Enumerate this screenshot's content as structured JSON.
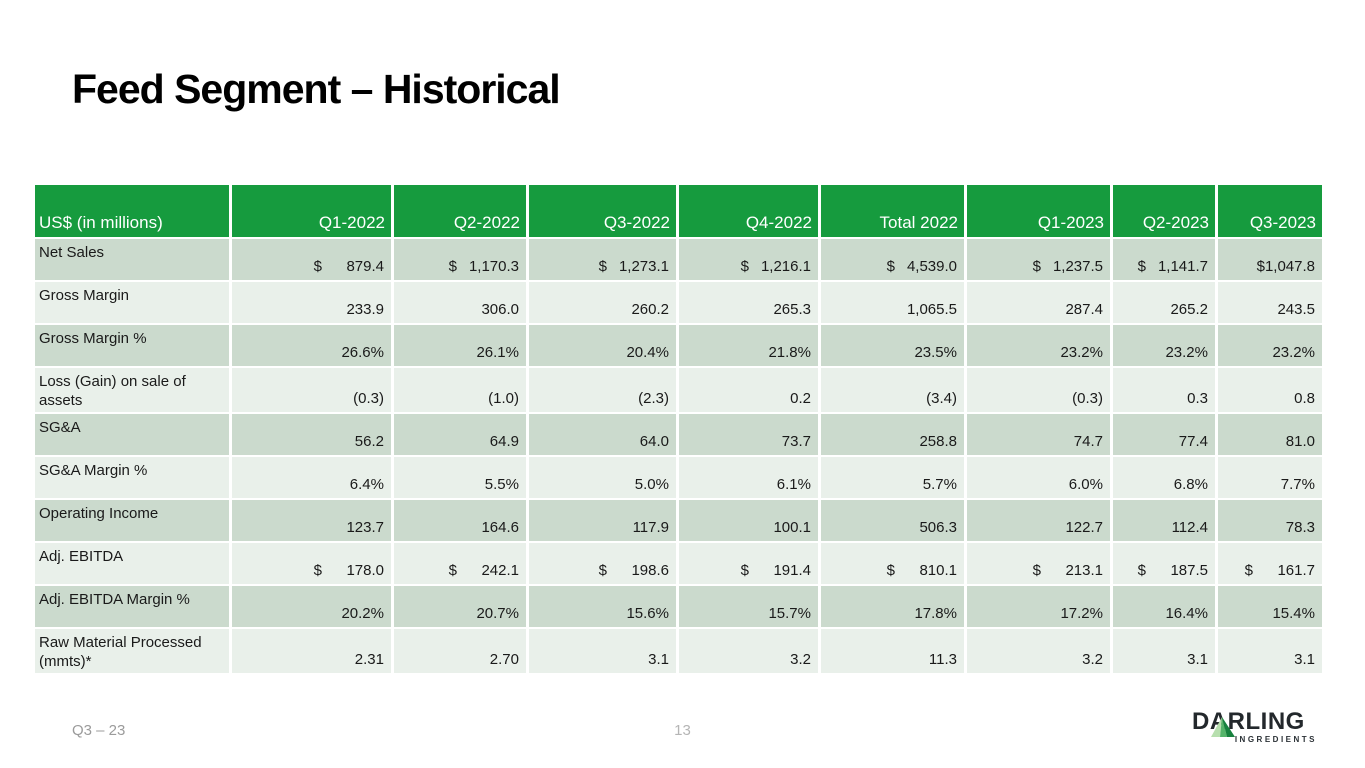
{
  "title": "Feed Segment – Historical",
  "table": {
    "unit_label": "US$ (in millions)",
    "columns": [
      "Q1-2022",
      "Q2-2022",
      "Q3-2022",
      "Q4-2022",
      "Total 2022",
      "Q1-2023",
      "Q2-2023",
      "Q3-2023"
    ],
    "rows": [
      {
        "label": "Net Sales",
        "cells": [
          {
            "currency": "$",
            "value": "879.4"
          },
          {
            "currency": "$",
            "value": "1,170.3"
          },
          {
            "currency": "$",
            "value": "1,273.1"
          },
          {
            "currency": "$",
            "value": "1,216.1"
          },
          {
            "currency": "$",
            "value": "4,539.0"
          },
          {
            "currency": "$",
            "value": "1,237.5"
          },
          {
            "currency": "$",
            "value": "1,141.7"
          },
          {
            "value": "$1,047.8"
          }
        ]
      },
      {
        "label": "Gross Margin",
        "cells": [
          {
            "value": "233.9"
          },
          {
            "value": "306.0"
          },
          {
            "value": "260.2"
          },
          {
            "value": "265.3"
          },
          {
            "value": "1,065.5"
          },
          {
            "value": "287.4"
          },
          {
            "value": "265.2"
          },
          {
            "value": "243.5"
          }
        ]
      },
      {
        "label": "Gross Margin %",
        "cells": [
          {
            "value": "26.6%"
          },
          {
            "value": "26.1%"
          },
          {
            "value": "20.4%"
          },
          {
            "value": "21.8%"
          },
          {
            "value": "23.5%"
          },
          {
            "value": "23.2%"
          },
          {
            "value": "23.2%"
          },
          {
            "value": "23.2%"
          }
        ]
      },
      {
        "label": "Loss (Gain) on sale of assets",
        "cells": [
          {
            "value": "(0.3)"
          },
          {
            "value": "(1.0)"
          },
          {
            "value": "(2.3)"
          },
          {
            "value": "0.2"
          },
          {
            "value": "(3.4)"
          },
          {
            "value": "(0.3)"
          },
          {
            "value": "0.3"
          },
          {
            "value": "0.8"
          }
        ]
      },
      {
        "label": "SG&A",
        "cells": [
          {
            "value": "56.2"
          },
          {
            "value": "64.9"
          },
          {
            "value": "64.0"
          },
          {
            "value": "73.7"
          },
          {
            "value": "258.8"
          },
          {
            "value": "74.7"
          },
          {
            "value": "77.4"
          },
          {
            "value": "81.0"
          }
        ]
      },
      {
        "label": "SG&A Margin %",
        "cells": [
          {
            "value": "6.4%"
          },
          {
            "value": "5.5%"
          },
          {
            "value": "5.0%"
          },
          {
            "value": "6.1%"
          },
          {
            "value": "5.7%"
          },
          {
            "value": "6.0%"
          },
          {
            "value": "6.8%"
          },
          {
            "value": "7.7%"
          }
        ]
      },
      {
        "label": "Operating Income",
        "cells": [
          {
            "value": "123.7"
          },
          {
            "value": "164.6"
          },
          {
            "value": "117.9"
          },
          {
            "value": "100.1"
          },
          {
            "value": "506.3"
          },
          {
            "value": "122.7"
          },
          {
            "value": "112.4"
          },
          {
            "value": "78.3"
          }
        ]
      },
      {
        "label": "Adj. EBITDA",
        "cells": [
          {
            "currency": "$",
            "value": "178.0"
          },
          {
            "currency": "$",
            "value": "242.1"
          },
          {
            "currency": "$",
            "value": "198.6"
          },
          {
            "currency": "$",
            "value": "191.4"
          },
          {
            "currency": "$",
            "value": "810.1"
          },
          {
            "currency": "$",
            "value": "213.1"
          },
          {
            "currency": "$",
            "value": "187.5"
          },
          {
            "currency": "$",
            "value": "161.7"
          }
        ]
      },
      {
        "label": "Adj. EBITDA Margin %",
        "cells": [
          {
            "value": "20.2%"
          },
          {
            "value": "20.7%"
          },
          {
            "value": "15.6%"
          },
          {
            "value": "15.7%"
          },
          {
            "value": "17.8%"
          },
          {
            "value": "17.2%"
          },
          {
            "value": "16.4%"
          },
          {
            "value": "15.4%"
          }
        ]
      },
      {
        "label": "Raw Material Processed (mmts)*",
        "cells": [
          {
            "value": "2.31"
          },
          {
            "value": "2.70"
          },
          {
            "value": "3.1"
          },
          {
            "value": "3.2"
          },
          {
            "value": "11.3"
          },
          {
            "value": "3.2"
          },
          {
            "value": "3.1"
          },
          {
            "value": "3.1"
          }
        ]
      }
    ]
  },
  "footer": {
    "left": "Q3 – 23",
    "page": "13"
  },
  "logo": {
    "name": "DARLING",
    "subtitle": "INGREDIENTS"
  },
  "colors": {
    "header_green": "#169B3E",
    "row_band_dark": "#CBDACD",
    "row_band_light": "#E9F0EA",
    "logo_pyramid_light": "#B7DFAE",
    "logo_pyramid_mid": "#55B46A",
    "logo_pyramid_dark": "#17813E"
  }
}
